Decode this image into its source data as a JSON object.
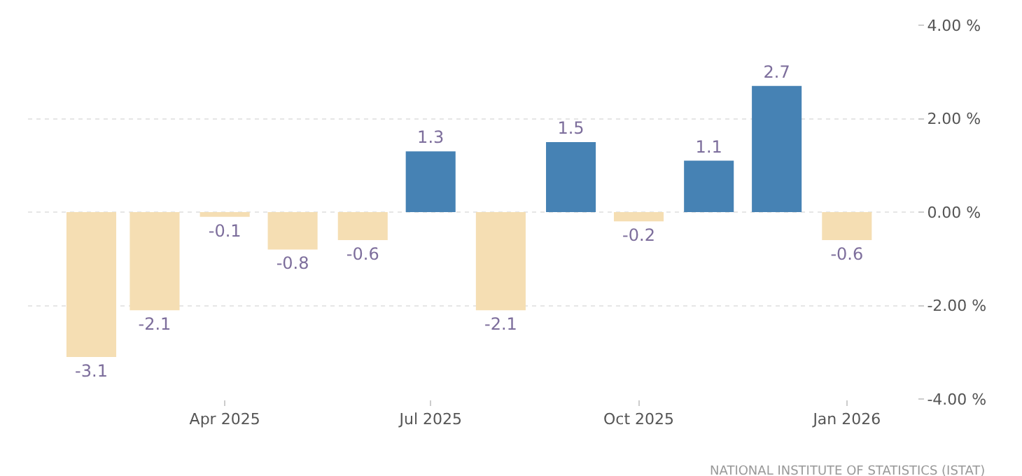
{
  "chart_data": {
    "type": "bar",
    "x": [
      "2025-02",
      "2025-03",
      "2025-04",
      "2025-05",
      "2025-06",
      "2025-07",
      "2025-08",
      "2025-09",
      "2025-10",
      "2025-11",
      "2025-12",
      "2026-01"
    ],
    "values": [
      -3.1,
      -2.1,
      -0.1,
      -0.8,
      -0.6,
      1.3,
      -2.1,
      1.5,
      -0.2,
      1.1,
      2.7,
      -0.6
    ],
    "colors": [
      "#f5deb3",
      "#f5deb3",
      "#f5deb3",
      "#f5deb3",
      "#f5deb3",
      "#4682b4",
      "#f5deb3",
      "#4682b4",
      "#f5deb3",
      "#4682b4",
      "#4682b4",
      "#f5deb3"
    ],
    "data_labels": true,
    "xlim": [
      "2025-01-04",
      "2026-02-01"
    ],
    "xticks": [
      {
        "value": "2025-04",
        "label": "Apr 2025"
      },
      {
        "value": "2025-07",
        "label": "Jul 2025"
      },
      {
        "value": "2025-10",
        "label": "Oct 2025"
      },
      {
        "value": "2026-01",
        "label": "Jan 2026"
      }
    ],
    "ylim": [
      -4,
      4
    ],
    "yticks": [
      {
        "value": -4,
        "label": "-4.00 %"
      },
      {
        "value": -2,
        "label": "-2.00 %"
      },
      {
        "value": 0,
        "label": "0.00 %"
      },
      {
        "value": 2,
        "label": "2.00 %"
      },
      {
        "value": 4,
        "label": "4.00 %"
      }
    ],
    "grid": "y",
    "annotations": [
      "NATIONAL INSTITUTE OF STATISTICS (ISTAT)"
    ]
  }
}
